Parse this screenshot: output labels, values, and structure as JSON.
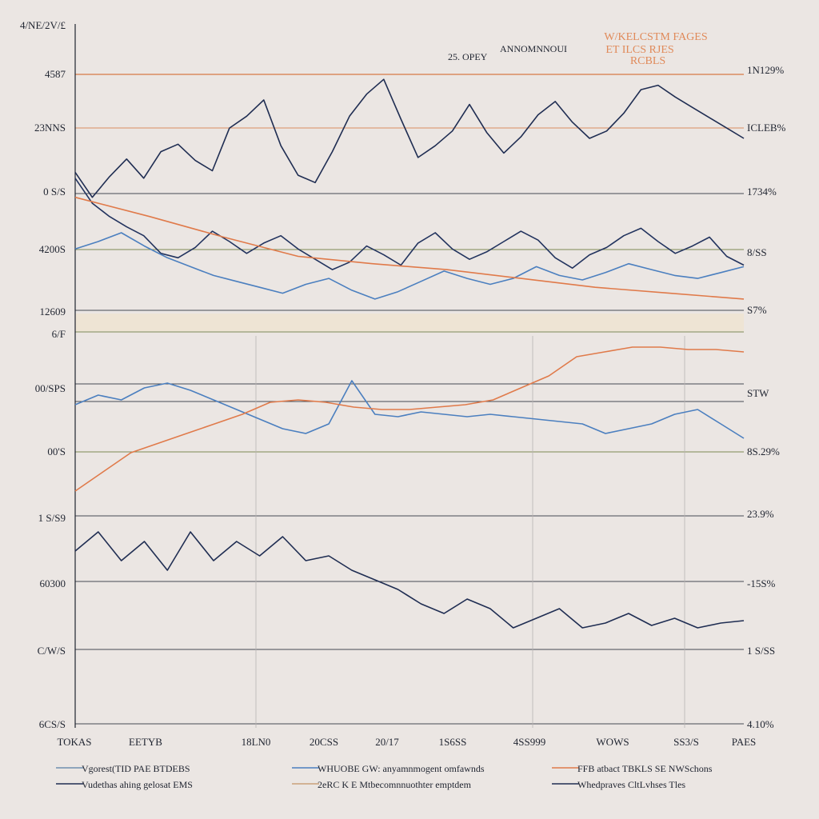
{
  "chart_data": {
    "type": "line",
    "title_lines": [
      "W/KELCSTM FAGES",
      "ET ILCS RJES",
      "RCBLS"
    ],
    "subtitle": "25. OPEY",
    "subtitle_right": "ANNOMNNOUI",
    "left_tick_labels": [
      "4/NE/2V/£",
      "4587",
      "23NNS",
      "0 S/S",
      "4200S",
      "12609",
      "6/F",
      "00/SPS",
      "00'S",
      "1 S/S9",
      "60300",
      "C/W/S",
      "6CS/S"
    ],
    "right_tick_labels": [
      "1N129%",
      "ICLEB%",
      "1734%",
      "8/SS",
      "S7%",
      "STW",
      "8S.29%",
      "23.9%",
      "-15S%",
      "1 S/SS",
      "4.10%"
    ],
    "x_tick_labels": [
      "TOKAS",
      "EETYB",
      "18LN0",
      "20CSS",
      "20/17",
      "1S6SS",
      "4SS999",
      "WOWS",
      "SS3/S",
      "PAES"
    ],
    "legend": [
      {
        "text": "Vgorest(TID PAE BTDEBS",
        "color": "#6f8fb0"
      },
      {
        "text": "Vudethas ahing gelosat EMS",
        "color": "#1f2d52"
      },
      {
        "text": "WHUOBE GW: anyamnmogent omfawnds",
        "color": "#4b7fbf"
      },
      {
        "text": "2eRC  K E  Mtbecomnnuothter emptdem",
        "color": "#c9a07a"
      },
      {
        "text": "FFB atbact TBKLS SE NWSchons",
        "color": "#e07a4a"
      },
      {
        "text": "Whedpraves CltLvhses  Tles",
        "color": "#1f2d52"
      }
    ],
    "series": [
      {
        "color": "#1f2d52",
        "panel": 1,
        "y": [
          4420,
          4250,
          4390,
          4510,
          4380,
          4560,
          4610,
          4500,
          4430,
          4720,
          4800,
          4910,
          4600,
          4400,
          4350,
          4560,
          4800,
          4950,
          5050,
          4780,
          4520,
          4600,
          4700,
          4880,
          4690,
          4550,
          4660,
          4810,
          4900,
          4760,
          4650,
          4700,
          4820,
          4980,
          5010,
          4930,
          4860,
          4790,
          4720,
          4650
        ]
      },
      {
        "color": "#22335e",
        "panel": 1,
        "y": [
          4380,
          4210,
          4120,
          4050,
          3990,
          3870,
          3840,
          3910,
          4020,
          3950,
          3870,
          3940,
          3990,
          3900,
          3830,
          3760,
          3810,
          3920,
          3860,
          3790,
          3940,
          4010,
          3900,
          3830,
          3880,
          3950,
          4020,
          3960,
          3840,
          3770,
          3860,
          3910,
          3990,
          4040,
          3950,
          3870,
          3920,
          3980,
          3850,
          3790
        ]
      },
      {
        "color": "#4b7fbf",
        "panel": 1,
        "y": [
          3900,
          3950,
          4010,
          3920,
          3840,
          3780,
          3720,
          3680,
          3640,
          3600,
          3660,
          3700,
          3620,
          3560,
          3610,
          3680,
          3750,
          3700,
          3660,
          3700,
          3780,
          3720,
          3690,
          3740,
          3800,
          3760,
          3720,
          3700,
          3740,
          3780
        ]
      },
      {
        "color": "#e07a4a",
        "panel": 1,
        "y": [
          4250,
          4120,
          3980,
          3850,
          3800,
          3760,
          3700,
          3640,
          3600,
          3560
        ]
      },
      {
        "color": "#4b7fbf",
        "panel": 2,
        "y": [
          48,
          52,
          50,
          55,
          57,
          54,
          50,
          46,
          42,
          38,
          36,
          40,
          58,
          44,
          43,
          45,
          44,
          43,
          44,
          43,
          42,
          41,
          40,
          36,
          38,
          40,
          44,
          46,
          40,
          34
        ]
      },
      {
        "color": "#e07a4a",
        "panel": 2,
        "y": [
          12,
          20,
          28,
          32,
          36,
          40,
          44,
          49,
          50,
          49,
          47,
          46,
          46,
          47,
          48,
          50,
          55,
          60,
          68,
          70,
          72,
          72,
          71,
          71,
          70
        ]
      },
      {
        "color": "#1f2d52",
        "panel": 3,
        "y": [
          62,
          70,
          58,
          66,
          54,
          70,
          58,
          66,
          60,
          68,
          58,
          60,
          54,
          50,
          46,
          40,
          36,
          42,
          38,
          30,
          34,
          38,
          30,
          32,
          36,
          31,
          34,
          30,
          32,
          33
        ]
      }
    ]
  }
}
